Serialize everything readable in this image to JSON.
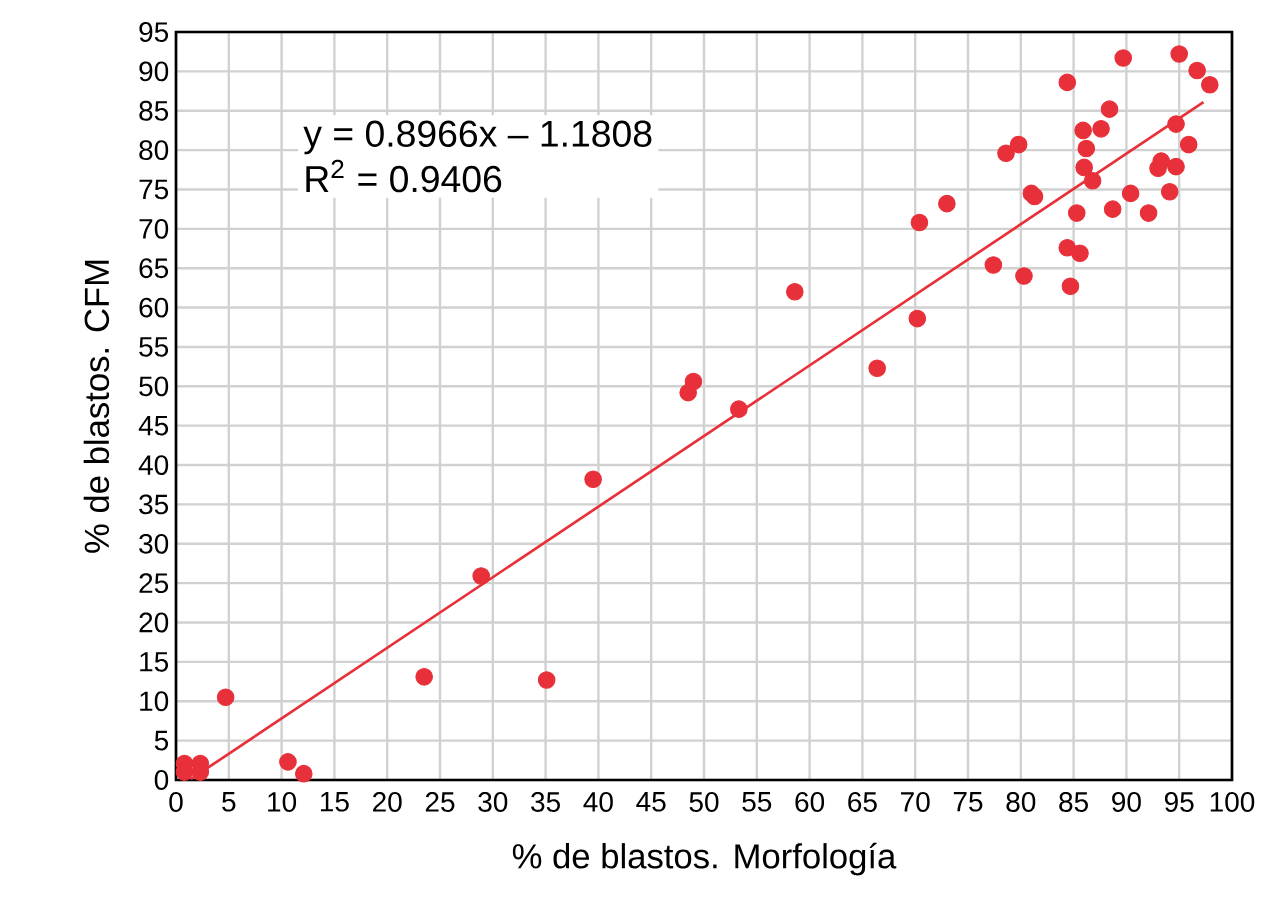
{
  "chart_data": {
    "type": "scatter",
    "xlabel": "% de blastos. Morfología",
    "ylabel": "% de blastos. CFM",
    "annotations": [
      "y = 0.8966x – 1.1808",
      "R$^{2}$ = 0.9406"
    ],
    "xlim": [
      0,
      100
    ],
    "ylim": [
      0,
      95
    ],
    "xticks": [
      0,
      5,
      10,
      15,
      20,
      25,
      30,
      35,
      40,
      45,
      50,
      55,
      60,
      65,
      70,
      75,
      80,
      85,
      90,
      95,
      100
    ],
    "yticks": [
      0,
      5,
      10,
      15,
      20,
      25,
      30,
      35,
      40,
      45,
      50,
      55,
      60,
      65,
      70,
      75,
      80,
      85,
      90,
      95
    ],
    "grid": true,
    "series": [
      {
        "color": "#e8303a",
        "marker": "circle",
        "x": [
          0.8,
          0.8,
          2.3,
          2.3,
          4.7,
          10.6,
          12.1,
          23.5,
          28.9,
          35.1,
          39.5,
          48.5,
          49.0,
          53.3,
          58.6,
          66.4,
          70.2,
          70.4,
          73.0,
          77.4,
          78.6,
          79.8,
          80.3,
          81.0,
          81.3,
          84.4,
          84.4,
          84.7,
          85.3,
          85.6,
          85.9,
          86.2,
          86.0,
          86.8,
          87.6,
          88.4,
          88.7,
          89.7,
          90.4,
          92.1,
          93.0,
          93.3,
          94.1,
          94.7,
          94.7,
          95.0,
          95.9,
          96.7,
          97.9
        ],
        "values": [
          2.1,
          1.0,
          2.1,
          1.0,
          10.5,
          2.3,
          0.8,
          13.1,
          25.9,
          12.7,
          38.2,
          49.2,
          50.6,
          47.1,
          62.0,
          52.3,
          58.6,
          70.8,
          73.2,
          65.4,
          79.6,
          80.7,
          64.0,
          74.5,
          74.1,
          88.6,
          67.6,
          62.7,
          72.0,
          66.9,
          82.5,
          80.2,
          77.8,
          76.1,
          82.7,
          85.2,
          72.5,
          91.7,
          74.5,
          72.0,
          77.7,
          78.6,
          74.7,
          77.9,
          83.3,
          92.2,
          80.7,
          90.1,
          88.3
        ]
      },
      {
        "type": "line",
        "color": "#e8303a",
        "marker": "none",
        "x": [
          1.4,
          97.3
        ],
        "values": [
          0.1,
          86.1
        ]
      }
    ]
  }
}
